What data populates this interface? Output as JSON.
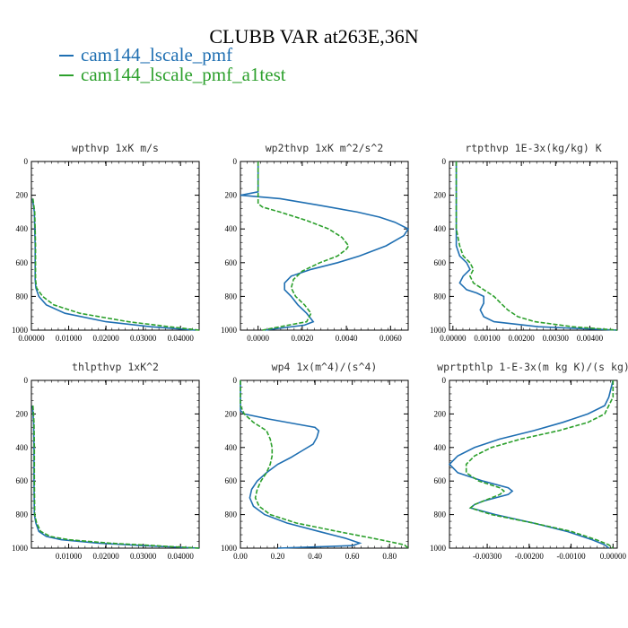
{
  "figure": {
    "title": "CLUBB VAR at263E,36N"
  },
  "legend": [
    {
      "name": "cam144_lscale_pmf",
      "color": "#1f6fb2"
    },
    {
      "name": "cam144_lscale_pmf_a1test",
      "color": "#2ca02c"
    }
  ],
  "colors": {
    "series1": "#1f6fb2",
    "series2": "#2ca02c",
    "axis": "#000000"
  },
  "chart_data": [
    {
      "type": "line",
      "title": "wpthvp   1xK m/s",
      "xlim": [
        0,
        0.045
      ],
      "ylim": [
        1000,
        0
      ],
      "xticks": [
        0,
        0.01,
        0.02,
        0.03,
        0.04
      ],
      "xtick_labels": [
        "0.00000",
        "0.01000",
        "0.02000",
        "0.03000",
        "0.04000"
      ],
      "yticks": [
        0,
        200,
        400,
        600,
        800,
        1000
      ],
      "ytick_labels": [
        "0",
        "200",
        "400",
        "600",
        "800",
        "1000"
      ],
      "series": [
        {
          "name": "cam144_lscale_pmf",
          "y": [
            220,
            300,
            400,
            500,
            600,
            700,
            750,
            800,
            850,
            900,
            950,
            980,
            1000
          ],
          "x": [
            0.0003,
            0.0008,
            0.0009,
            0.001,
            0.001,
            0.001,
            0.0012,
            0.002,
            0.004,
            0.009,
            0.02,
            0.032,
            0.044
          ]
        },
        {
          "name": "cam144_lscale_pmf_a1test",
          "y": [
            220,
            300,
            400,
            500,
            600,
            700,
            750,
            800,
            850,
            900,
            950,
            980,
            1000
          ],
          "x": [
            0.0004,
            0.0009,
            0.001,
            0.0011,
            0.0011,
            0.0011,
            0.0014,
            0.003,
            0.006,
            0.013,
            0.026,
            0.037,
            0.045
          ]
        }
      ]
    },
    {
      "type": "line",
      "title": "wp2thvp   1xK m^2/s^2",
      "xlim": [
        -0.0008,
        0.0068
      ],
      "ylim": [
        1000,
        0
      ],
      "xticks": [
        0,
        0.002,
        0.004,
        0.006
      ],
      "xtick_labels": [
        "0.0000",
        "0.0020",
        "0.0040",
        "0.0060"
      ],
      "yticks": [
        0,
        200,
        400,
        600,
        800,
        1000
      ],
      "ytick_labels": [
        "0",
        "200",
        "400",
        "600",
        "800",
        "1000"
      ],
      "series": [
        {
          "name": "cam144_lscale_pmf",
          "y": [
            0,
            150,
            180,
            200,
            220,
            260,
            300,
            330,
            360,
            400,
            440,
            500,
            560,
            600,
            640,
            680,
            720,
            760,
            800,
            850,
            900,
            950,
            970,
            1000
          ],
          "x": [
            0,
            0,
            0,
            -0.0008,
            0.001,
            0.0028,
            0.0045,
            0.0055,
            0.0062,
            0.0068,
            0.0066,
            0.0058,
            0.0046,
            0.0036,
            0.0024,
            0.0015,
            0.0012,
            0.0012,
            0.0015,
            0.0018,
            0.0022,
            0.0025,
            0.0021,
            0.0003
          ]
        },
        {
          "name": "cam144_lscale_pmf_a1test",
          "y": [
            0,
            150,
            200,
            250,
            270,
            300,
            350,
            400,
            450,
            500,
            520,
            560,
            600,
            650,
            700,
            750,
            800,
            850,
            900,
            950,
            980,
            1000
          ],
          "x": [
            0,
            0,
            0,
            0,
            0.0002,
            0.001,
            0.0022,
            0.0032,
            0.0038,
            0.0041,
            0.004,
            0.0036,
            0.0028,
            0.002,
            0.0016,
            0.0015,
            0.0017,
            0.0021,
            0.0024,
            0.0022,
            0.001,
            0.0002
          ]
        }
      ]
    },
    {
      "type": "line",
      "title": "rtpthvp   1E-3x(kg/kg) K",
      "xlim": [
        -0.0001,
        0.0048
      ],
      "ylim": [
        1000,
        0
      ],
      "xticks": [
        0,
        0.001,
        0.002,
        0.003,
        0.004
      ],
      "xtick_labels": [
        "0.00000",
        "0.00100",
        "0.00200",
        "0.00300",
        "0.00400"
      ],
      "yticks": [
        0,
        200,
        400,
        600,
        800,
        1000
      ],
      "ytick_labels": [
        "0",
        "200",
        "400",
        "600",
        "800",
        "1000"
      ],
      "series": [
        {
          "name": "cam144_lscale_pmf",
          "y": [
            0,
            200,
            300,
            400,
            500,
            560,
            600,
            640,
            680,
            720,
            760,
            780,
            800,
            840,
            880,
            920,
            950,
            980,
            1000
          ],
          "x": [
            0.0001,
            0.0001,
            0.0001,
            0.0001,
            0.0001,
            0.0002,
            0.0004,
            0.0005,
            0.0003,
            0.0002,
            0.0004,
            0.0007,
            0.0009,
            0.0009,
            0.0008,
            0.0009,
            0.0012,
            0.0025,
            0.0048
          ]
        },
        {
          "name": "cam144_lscale_pmf_a1test",
          "y": [
            0,
            200,
            300,
            400,
            500,
            560,
            600,
            640,
            680,
            720,
            760,
            800,
            840,
            880,
            920,
            950,
            980,
            1000
          ],
          "x": [
            0.0001,
            0.0001,
            0.0001,
            0.0001,
            0.0002,
            0.0003,
            0.0005,
            0.0006,
            0.0005,
            0.0006,
            0.0009,
            0.0012,
            0.0014,
            0.0016,
            0.0019,
            0.0024,
            0.0035,
            0.0048
          ]
        }
      ]
    },
    {
      "type": "line",
      "title": "thlpthvp   1xK^2",
      "xlim": [
        0,
        0.045
      ],
      "ylim": [
        1000,
        0
      ],
      "xticks": [
        0.01,
        0.02,
        0.03,
        0.04
      ],
      "xtick_labels": [
        "0.01000",
        "0.02000",
        "0.03000",
        "0.04000"
      ],
      "yticks": [
        0,
        200,
        400,
        600,
        800,
        1000
      ],
      "ytick_labels": [
        "0",
        "200",
        "400",
        "600",
        "800",
        "1000"
      ],
      "series": [
        {
          "name": "cam144_lscale_pmf",
          "y": [
            150,
            250,
            400,
            600,
            800,
            850,
            900,
            930,
            950,
            970,
            985,
            1000
          ],
          "x": [
            0.0003,
            0.0006,
            0.0007,
            0.0007,
            0.0008,
            0.0012,
            0.002,
            0.004,
            0.008,
            0.018,
            0.03,
            0.045
          ]
        },
        {
          "name": "cam144_lscale_pmf_a1test",
          "y": [
            150,
            250,
            400,
            600,
            800,
            850,
            900,
            930,
            950,
            970,
            985,
            1000
          ],
          "x": [
            0.0004,
            0.0007,
            0.0008,
            0.0008,
            0.0009,
            0.0014,
            0.0025,
            0.005,
            0.01,
            0.021,
            0.033,
            0.045
          ]
        }
      ]
    },
    {
      "type": "line",
      "title": "wp4   1x(m^4)/(s^4)",
      "xlim": [
        0,
        0.9
      ],
      "ylim": [
        1000,
        0
      ],
      "xticks": [
        0,
        0.2,
        0.4,
        0.6,
        0.8
      ],
      "xtick_labels": [
        "0.00",
        "0.20",
        "0.40",
        "0.60",
        "0.80"
      ],
      "yticks": [
        0,
        200,
        400,
        600,
        800,
        1000
      ],
      "ytick_labels": [
        "0",
        "200",
        "400",
        "600",
        "800",
        "1000"
      ],
      "series": [
        {
          "name": "cam144_lscale_pmf",
          "y": [
            0,
            150,
            180,
            200,
            230,
            260,
            280,
            300,
            340,
            380,
            420,
            460,
            500,
            550,
            600,
            650,
            700,
            750,
            800,
            850,
            900,
            940,
            970,
            985,
            1000
          ],
          "x": [
            0,
            0,
            0,
            0.02,
            0.15,
            0.3,
            0.4,
            0.42,
            0.41,
            0.39,
            0.33,
            0.27,
            0.2,
            0.14,
            0.09,
            0.06,
            0.05,
            0.07,
            0.13,
            0.25,
            0.42,
            0.56,
            0.64,
            0.6,
            0.2
          ]
        },
        {
          "name": "cam144_lscale_pmf_a1test",
          "y": [
            0,
            150,
            200,
            250,
            300,
            350,
            400,
            450,
            500,
            550,
            600,
            650,
            700,
            750,
            800,
            850,
            900,
            950,
            980,
            1000
          ],
          "x": [
            0,
            0,
            0.02,
            0.07,
            0.14,
            0.16,
            0.17,
            0.17,
            0.16,
            0.14,
            0.11,
            0.09,
            0.08,
            0.1,
            0.16,
            0.3,
            0.52,
            0.75,
            0.88,
            0.9
          ]
        }
      ]
    },
    {
      "type": "line",
      "title": "wprtpthlp   1-E-3x(m kg K)/(s kg)",
      "xlim": [
        -0.0039,
        0.0001
      ],
      "ylim": [
        1000,
        0
      ],
      "xticks": [
        -0.003,
        -0.002,
        -0.001,
        0
      ],
      "xtick_labels": [
        "-0.00300",
        "-0.00200",
        "-0.00100",
        "0.00000"
      ],
      "yticks": [
        0,
        200,
        400,
        600,
        800,
        1000
      ],
      "ytick_labels": [
        "0",
        "200",
        "400",
        "600",
        "800",
        "1000"
      ],
      "series": [
        {
          "name": "cam144_lscale_pmf",
          "y": [
            0,
            100,
            150,
            200,
            250,
            300,
            350,
            400,
            450,
            500,
            550,
            600,
            640,
            660,
            680,
            700,
            720,
            740,
            760,
            800,
            850,
            900,
            950,
            980,
            1000
          ],
          "x": [
            0,
            -0.0001,
            -0.0002,
            -0.0006,
            -0.0012,
            -0.0019,
            -0.0027,
            -0.0033,
            -0.0037,
            -0.0039,
            -0.0037,
            -0.0031,
            -0.0025,
            -0.0024,
            -0.0025,
            -0.0028,
            -0.0031,
            -0.0033,
            -0.0034,
            -0.0028,
            -0.0019,
            -0.0011,
            -0.0005,
            -0.0002,
            -0.0001
          ]
        },
        {
          "name": "cam144_lscale_pmf_a1test",
          "y": [
            0,
            100,
            150,
            200,
            250,
            300,
            350,
            400,
            450,
            500,
            550,
            600,
            640,
            660,
            680,
            700,
            720,
            740,
            760,
            800,
            850,
            900,
            950,
            980,
            1000
          ],
          "x": [
            0,
            0,
            -0.0001,
            -0.0002,
            -0.0006,
            -0.0013,
            -0.0022,
            -0.0029,
            -0.0033,
            -0.0035,
            -0.0035,
            -0.0032,
            -0.0027,
            -0.0026,
            -0.0027,
            -0.0029,
            -0.0031,
            -0.0033,
            -0.0034,
            -0.0029,
            -0.0019,
            -0.001,
            -0.0004,
            -0.0001,
            0
          ]
        }
      ]
    }
  ]
}
